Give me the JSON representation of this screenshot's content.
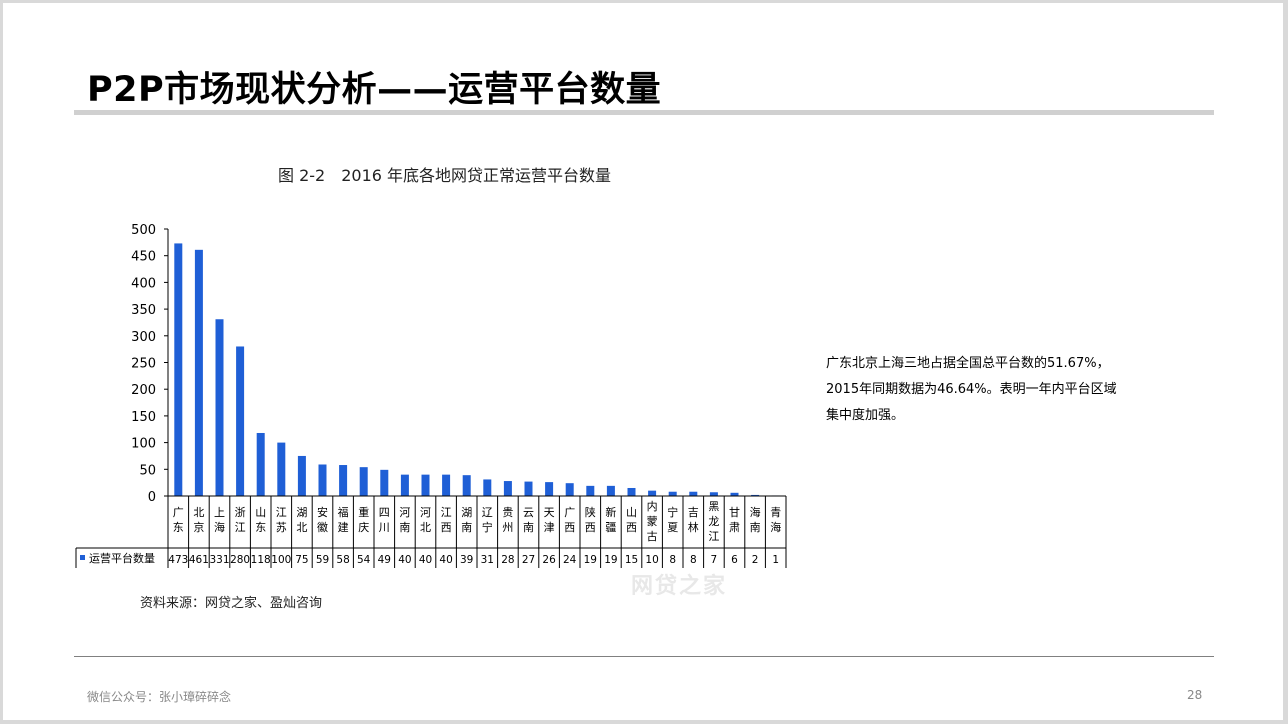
{
  "slide": {
    "title": "P2P市场现状分析——运营平台数量",
    "description_lines": [
      "广东北京上海三地占据全国总平台数的51.67%，",
      "2015年同期数据为46.64%。表明一年内平台区域",
      "集中度加强。"
    ],
    "footer_text": "微信公众号：张小璋碎碎念",
    "page_number": "28",
    "watermark_text": "网贷之家"
  },
  "chart_data": {
    "type": "bar",
    "title": "图 2-2　2016 年底各地网贷正常运营平台数量",
    "source": "资料来源：网贷之家、盈灿咨询",
    "categories": [
      "广东",
      "北京",
      "上海",
      "浙江",
      "山东",
      "江苏",
      "湖北",
      "安徽",
      "福建",
      "重庆",
      "四川",
      "河南",
      "河北",
      "江西",
      "湖南",
      "辽宁",
      "贵州",
      "云南",
      "天津",
      "广西",
      "陕西",
      "新疆",
      "山西",
      "内蒙古",
      "宁夏",
      "吉林",
      "黑龙江",
      "甘肃",
      "海南",
      "青海"
    ],
    "series": [
      {
        "name": "运营平台数量",
        "values": [
          473,
          461,
          331,
          280,
          118,
          100,
          75,
          59,
          58,
          54,
          49,
          40,
          40,
          40,
          39,
          31,
          28,
          27,
          26,
          24,
          19,
          19,
          15,
          10,
          8,
          8,
          7,
          6,
          2,
          1
        ],
        "color": "#1f5fd6"
      }
    ],
    "ylim": [
      0,
      500
    ],
    "yticks": [
      0,
      50,
      100,
      150,
      200,
      250,
      300,
      350,
      400,
      450,
      500
    ],
    "grid": false,
    "legend_position": "data-table-left"
  }
}
